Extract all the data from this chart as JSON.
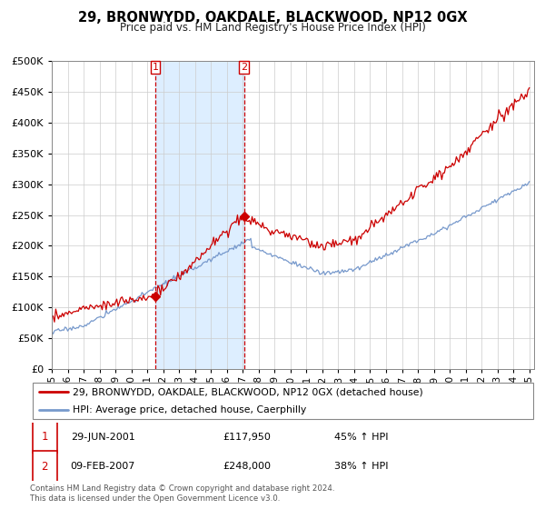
{
  "title": "29, BRONWYDD, OAKDALE, BLACKWOOD, NP12 0GX",
  "subtitle": "Price paid vs. HM Land Registry's House Price Index (HPI)",
  "legend_line1": "29, BRONWYDD, OAKDALE, BLACKWOOD, NP12 0GX (detached house)",
  "legend_line2": "HPI: Average price, detached house, Caerphilly",
  "annotation1_label": "1",
  "annotation1_date": "29-JUN-2001",
  "annotation1_price": "£117,950",
  "annotation1_hpi": "45% ↑ HPI",
  "annotation2_label": "2",
  "annotation2_date": "09-FEB-2007",
  "annotation2_price": "£248,000",
  "annotation2_hpi": "38% ↑ HPI",
  "footer": "Contains HM Land Registry data © Crown copyright and database right 2024.\nThis data is licensed under the Open Government Licence v3.0.",
  "red_color": "#cc0000",
  "blue_color": "#7799cc",
  "shaded_color": "#ddeeff",
  "vline_color": "#cc0000",
  "ylim": [
    0,
    500000
  ],
  "yticks": [
    0,
    50000,
    100000,
    150000,
    200000,
    250000,
    300000,
    350000,
    400000,
    450000,
    500000
  ],
  "year_start": 1995,
  "year_end": 2025,
  "sale1_year": 2001.5,
  "sale2_year": 2007.08,
  "sale1_price": 117950,
  "sale2_price": 248000
}
